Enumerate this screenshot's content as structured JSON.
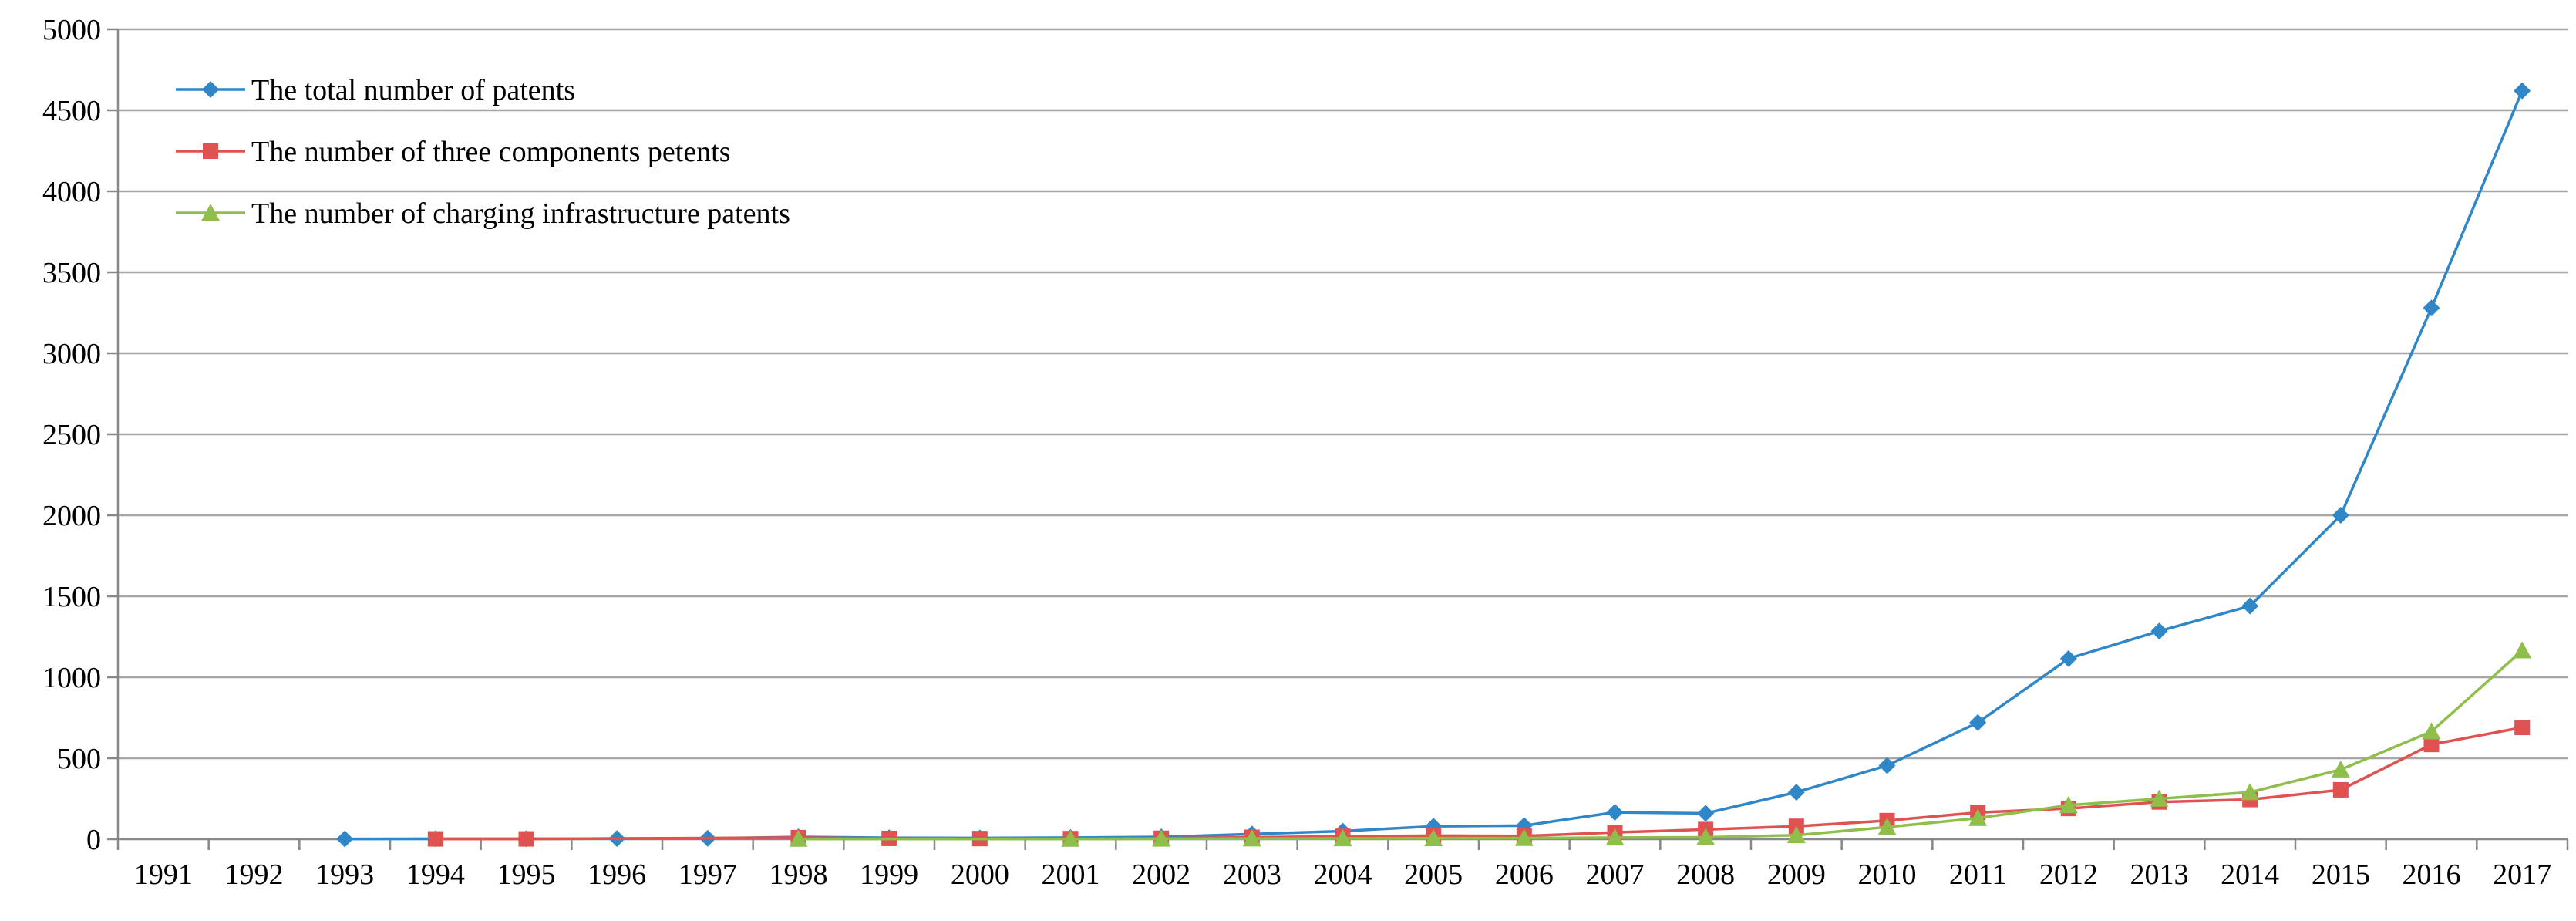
{
  "chart_data": {
    "type": "line",
    "title": "",
    "xlabel": "",
    "ylabel": "",
    "ylim": [
      0,
      5000
    ],
    "yticks": [
      0,
      500,
      1000,
      1500,
      2000,
      2500,
      3000,
      3500,
      4000,
      4500,
      5000
    ],
    "grid": "horizontal",
    "legend": "top-left",
    "categories": [
      "1991",
      "1992",
      "1993",
      "1994",
      "1995",
      "1996",
      "1997",
      "1998",
      "1999",
      "2000",
      "2001",
      "2002",
      "2003",
      "2004",
      "2005",
      "2006",
      "2007",
      "2008",
      "2009",
      "2010",
      "2011",
      "2012",
      "2013",
      "2014",
      "2015",
      "2016",
      "2017"
    ],
    "series": [
      {
        "name": "The total number of patents",
        "color": "#2f87c8",
        "marker": "diamond",
        "values": [
          null,
          null,
          2,
          3,
          3,
          4,
          6,
          14,
          9,
          8,
          10,
          14,
          32,
          50,
          80,
          84,
          166,
          160,
          290,
          455,
          720,
          1115,
          1285,
          1440,
          2000,
          3280,
          4620
        ]
      },
      {
        "name": "The number of three components petents",
        "color": "#e05251",
        "marker": "square",
        "values": [
          null,
          null,
          null,
          2,
          2,
          null,
          null,
          10,
          5,
          4,
          4,
          6,
          12,
          18,
          22,
          20,
          42,
          60,
          80,
          115,
          165,
          190,
          230,
          245,
          305,
          585,
          690
        ]
      },
      {
        "name": "The number of charging infrastructure patents",
        "color": "#8fbf4a",
        "marker": "triangle",
        "values": [
          null,
          null,
          null,
          null,
          null,
          null,
          null,
          2,
          null,
          null,
          2,
          3,
          4,
          5,
          6,
          7,
          10,
          12,
          25,
          75,
          130,
          210,
          250,
          290,
          430,
          665,
          1165
        ]
      }
    ]
  }
}
